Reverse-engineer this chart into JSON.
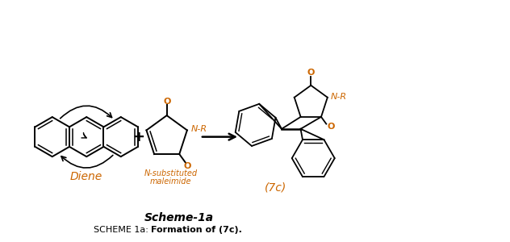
{
  "title_scheme": "Scheme-1a",
  "title_caption_normal": "SCHEME 1a: ",
  "title_caption_bold": "Formation of (7c).",
  "label_diene": "Diene",
  "label_maleimide_line1": "N-substituted",
  "label_maleimide_line2": "maleimide",
  "label_product": "(7c)",
  "label_nr": "N-R",
  "label_nr2": "N-R",
  "plus_sign": "+",
  "bond_color": "#000000",
  "orange_color": "#CC6600",
  "bg_color": "#ffffff",
  "fig_width": 6.32,
  "fig_height": 3.0,
  "dpi": 100
}
